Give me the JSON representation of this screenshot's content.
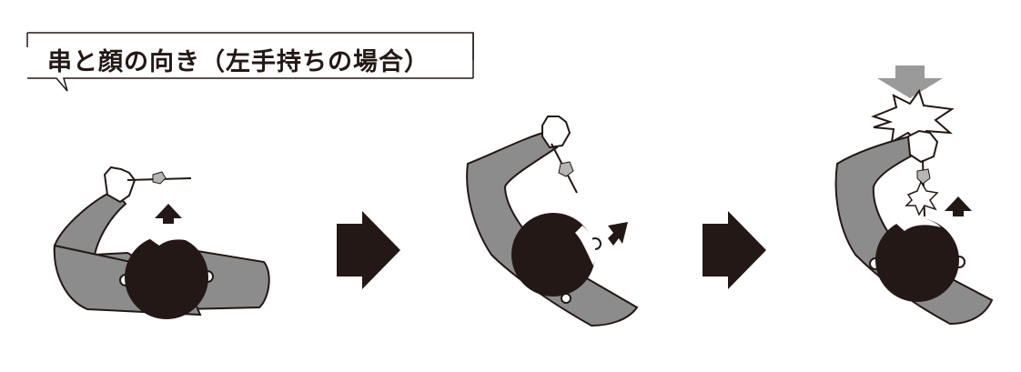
{
  "title": "串と顔の向き（左手持ちの場合）",
  "colors": {
    "ink": "#231815",
    "sleeve": "#8c8c8c",
    "skin": "#ffffff",
    "arrow_gray": "#9a9a9a",
    "dart_tip": "#b5b5b5"
  },
  "steps": [
    {
      "id": "step-1",
      "description_icon": "player-top-view"
    },
    {
      "id": "step-2",
      "description_icon": "player-top-view-turned"
    },
    {
      "id": "step-3",
      "description_icon": "player-top-view-impact"
    }
  ]
}
